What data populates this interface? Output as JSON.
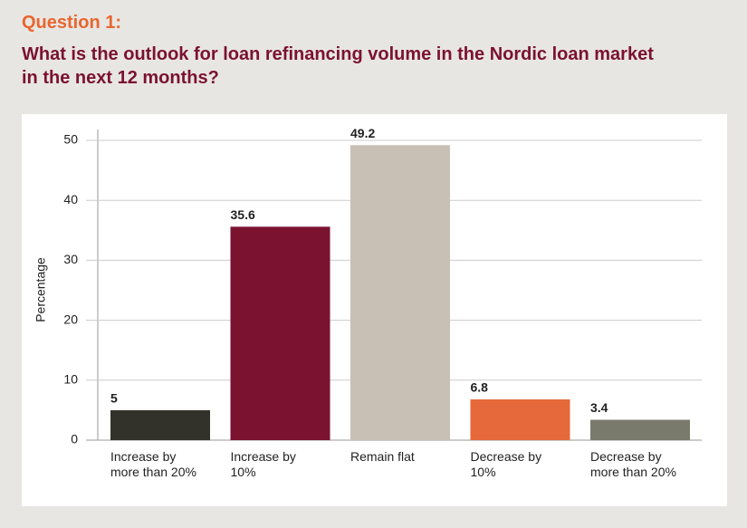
{
  "header": "Question 1:",
  "chart_data": {
    "type": "bar",
    "title": "What is the outlook for loan refinancing volume in the Nordic loan market\nin the next 12 months?",
    "ylabel": "Percentage",
    "categories": [
      "Increase by\nmore than 20%",
      "Increase by\n10%",
      "Remain flat",
      "Decrease by\n10%",
      "Decrease by\nmore than 20%"
    ],
    "values": [
      5,
      35.6,
      49.2,
      6.8,
      3.4
    ],
    "colors": [
      "#33322a",
      "#7b1230",
      "#c8bfb5",
      "#e5693a",
      "#7a7a6c"
    ],
    "ylim": [
      0,
      50
    ],
    "yticks": [
      0,
      10,
      20,
      30,
      40,
      50
    ],
    "grid": true
  }
}
